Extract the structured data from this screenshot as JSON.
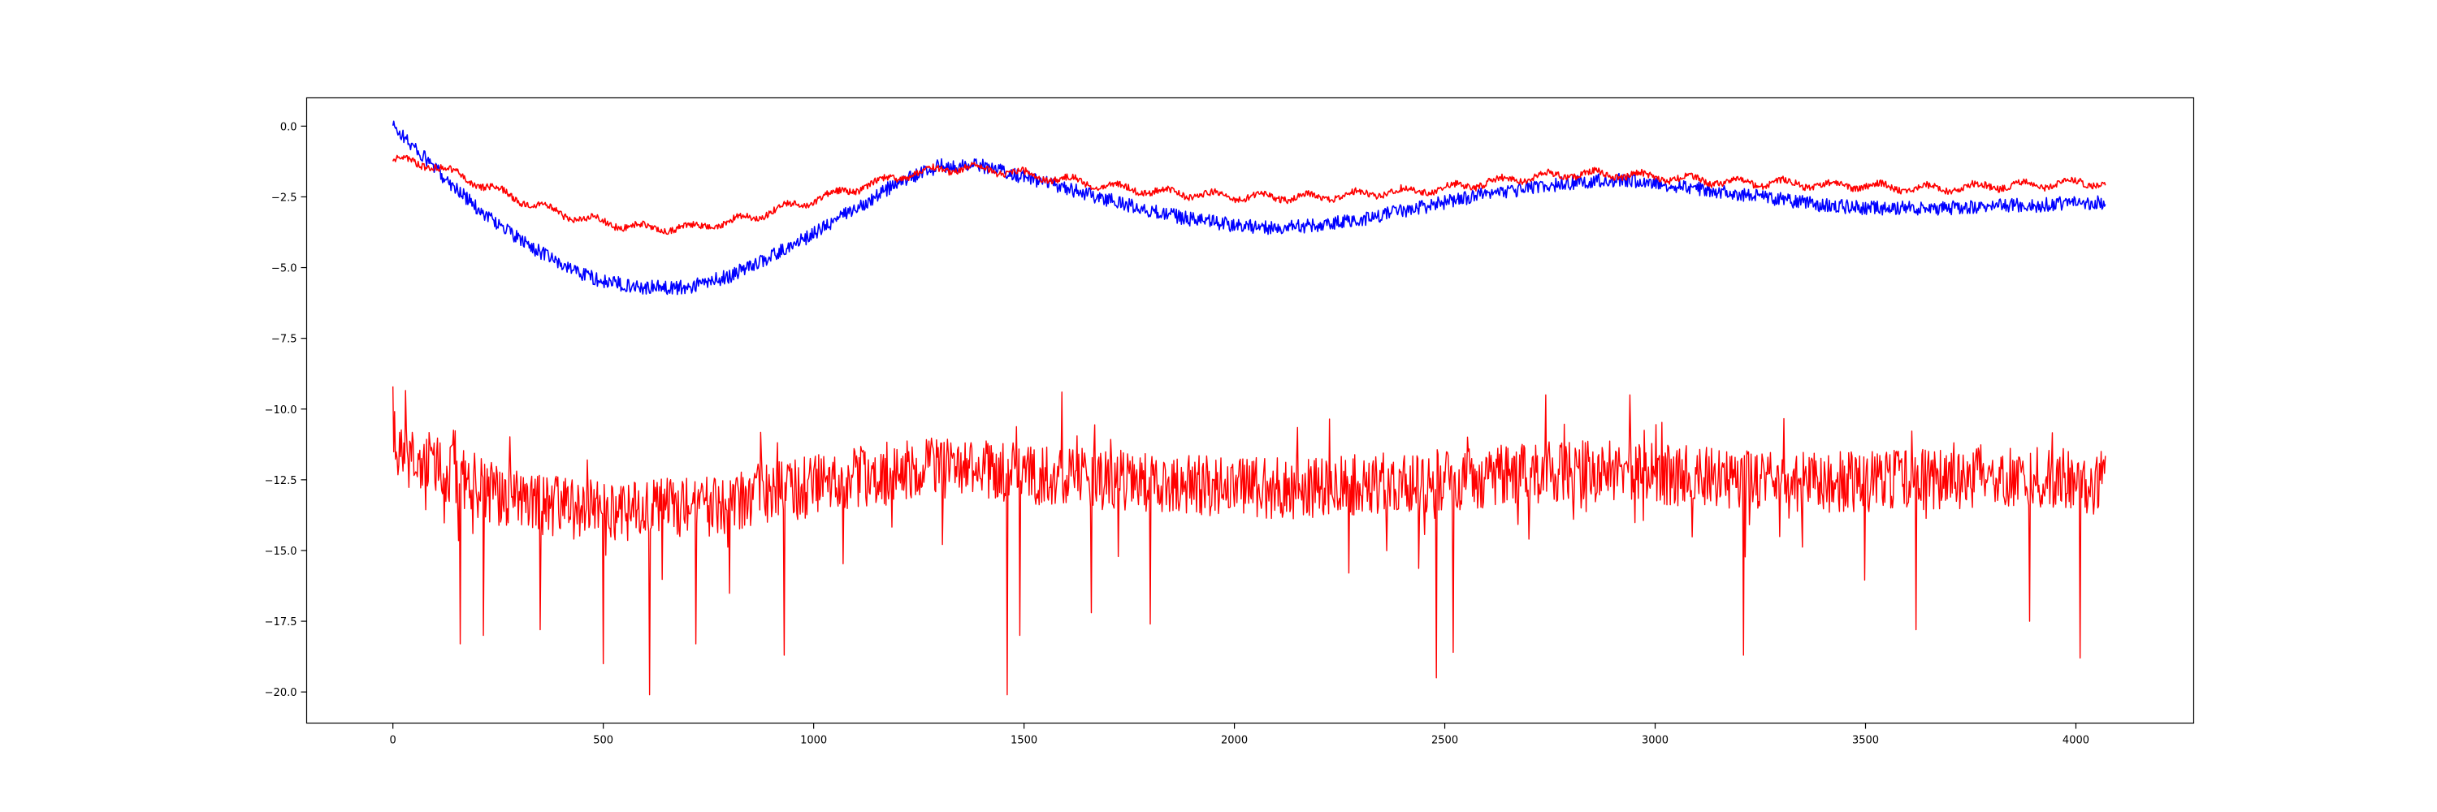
{
  "chart_data": {
    "type": "line",
    "title": "",
    "xlabel": "",
    "ylabel": "",
    "xlim": [
      -205,
      4280
    ],
    "ylim": [
      -21.1,
      1.0
    ],
    "x_ticks": [
      0,
      500,
      1000,
      1500,
      2000,
      2500,
      3000,
      3500,
      4000
    ],
    "y_ticks": [
      0.0,
      -2.5,
      -5.0,
      -7.5,
      -10.0,
      -12.5,
      -15.0,
      -17.5,
      -20.0
    ],
    "x_tick_labels": [
      "0",
      "500",
      "1000",
      "1500",
      "2000",
      "2500",
      "3000",
      "3500",
      "4000"
    ],
    "y_tick_labels": [
      "0.0",
      "−2.5",
      "−5.0",
      "−7.5",
      "−10.0",
      "−12.5",
      "−15.0",
      "−17.5",
      "−20.0"
    ],
    "grid": false,
    "legend": "none",
    "x_range": [
      0,
      4070
    ],
    "series": [
      {
        "color": "#0000ff",
        "noise_amplitude": 0.25,
        "x": [
          0,
          100,
          200,
          300,
          400,
          500,
          600,
          700,
          800,
          900,
          1000,
          1100,
          1200,
          1300,
          1400,
          1500,
          1600,
          1700,
          1800,
          1900,
          2000,
          2100,
          2200,
          2300,
          2400,
          2500,
          2600,
          2700,
          2800,
          2900,
          3000,
          3100,
          3200,
          3300,
          3400,
          3500,
          3600,
          3700,
          3800,
          3900,
          4000,
          4070
        ],
        "values": [
          0.0,
          -1.5,
          -2.9,
          -4.0,
          -4.9,
          -5.5,
          -5.7,
          -5.7,
          -5.3,
          -4.6,
          -3.8,
          -2.9,
          -2.0,
          -1.4,
          -1.4,
          -1.8,
          -2.2,
          -2.6,
          -3.0,
          -3.3,
          -3.5,
          -3.6,
          -3.5,
          -3.3,
          -3.0,
          -2.7,
          -2.4,
          -2.2,
          -2.0,
          -1.9,
          -2.0,
          -2.2,
          -2.4,
          -2.6,
          -2.8,
          -2.9,
          -2.9,
          -2.9,
          -2.8,
          -2.8,
          -2.7,
          -2.7
        ]
      },
      {
        "color": "#ff0000",
        "noise_amplitude": 0.12,
        "x": [
          0,
          100,
          200,
          300,
          400,
          500,
          600,
          700,
          800,
          900,
          1000,
          1100,
          1200,
          1300,
          1400,
          1500,
          1600,
          1700,
          1800,
          1900,
          2000,
          2100,
          2200,
          2300,
          2400,
          2500,
          2600,
          2700,
          2800,
          2900,
          3000,
          3100,
          3200,
          3300,
          3400,
          3500,
          3600,
          3700,
          3800,
          3900,
          4000,
          4070
        ],
        "values": [
          -1.2,
          -1.4,
          -2.0,
          -2.6,
          -3.1,
          -3.4,
          -3.6,
          -3.6,
          -3.4,
          -3.0,
          -2.6,
          -2.2,
          -1.8,
          -1.5,
          -1.5,
          -1.7,
          -1.9,
          -2.1,
          -2.3,
          -2.4,
          -2.5,
          -2.5,
          -2.5,
          -2.4,
          -2.3,
          -2.2,
          -2.0,
          -1.8,
          -1.7,
          -1.7,
          -1.8,
          -1.9,
          -2.0,
          -2.0,
          -2.1,
          -2.1,
          -2.2,
          -2.2,
          -2.1,
          -2.1,
          -2.0,
          -2.0
        ]
      },
      {
        "color": "#ff0000",
        "noise_amplitude": 1.1,
        "x": [
          0,
          100,
          200,
          300,
          400,
          500,
          600,
          700,
          800,
          900,
          1000,
          1100,
          1200,
          1300,
          1400,
          1500,
          1600,
          1700,
          1800,
          1900,
          2000,
          2100,
          2200,
          2300,
          2400,
          2500,
          2600,
          2700,
          2800,
          2900,
          3000,
          3100,
          3200,
          3300,
          3400,
          3500,
          3600,
          3700,
          3800,
          3900,
          4000,
          4070
        ],
        "values": [
          -11.5,
          -12.0,
          -12.8,
          -13.3,
          -13.5,
          -13.6,
          -13.6,
          -13.5,
          -13.3,
          -13.0,
          -12.7,
          -12.4,
          -12.2,
          -12.1,
          -12.2,
          -12.3,
          -12.4,
          -12.5,
          -12.6,
          -12.7,
          -12.8,
          -12.8,
          -12.8,
          -12.7,
          -12.6,
          -12.5,
          -12.4,
          -12.3,
          -12.2,
          -12.2,
          -12.3,
          -12.4,
          -12.5,
          -12.5,
          -12.6,
          -12.6,
          -12.5,
          -12.5,
          -12.4,
          -12.4,
          -12.4,
          -12.4
        ]
      }
    ],
    "spikes": [
      {
        "x": 0,
        "y": -9.2
      },
      {
        "x": 160,
        "y": -18.3
      },
      {
        "x": 215,
        "y": -18.0
      },
      {
        "x": 350,
        "y": -17.8
      },
      {
        "x": 500,
        "y": -19.0
      },
      {
        "x": 610,
        "y": -20.1
      },
      {
        "x": 720,
        "y": -18.3
      },
      {
        "x": 930,
        "y": -18.7
      },
      {
        "x": 1460,
        "y": -20.1
      },
      {
        "x": 1490,
        "y": -18.0
      },
      {
        "x": 1590,
        "y": -9.4
      },
      {
        "x": 1660,
        "y": -17.2
      },
      {
        "x": 1800,
        "y": -17.6
      },
      {
        "x": 2480,
        "y": -19.5
      },
      {
        "x": 2520,
        "y": -18.6
      },
      {
        "x": 2740,
        "y": -9.5
      },
      {
        "x": 2940,
        "y": -9.5
      },
      {
        "x": 3210,
        "y": -18.7
      },
      {
        "x": 3620,
        "y": -17.8
      },
      {
        "x": 3890,
        "y": -17.5
      },
      {
        "x": 4010,
        "y": -18.8
      }
    ]
  }
}
